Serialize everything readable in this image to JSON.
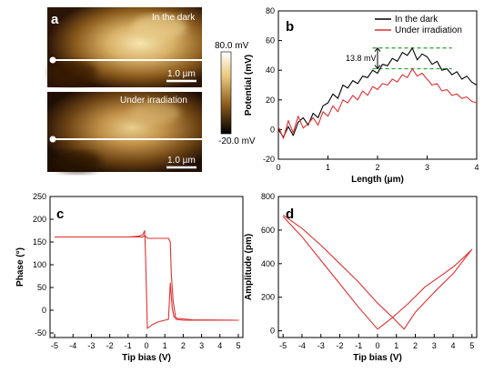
{
  "panel_a": {
    "letter": "a",
    "top_label": "In the dark",
    "bottom_label": "Under irradiation",
    "scalebar_top": "1.0 µm",
    "scalebar_bottom": "1.0 µm",
    "colorbar_max": "80.0 mV",
    "colorbar_min": "-20.0 mV",
    "colors": {
      "dark": "#1a0a00",
      "mid": "#8a5a1c",
      "bright": "#f2e0a6"
    }
  },
  "chart_data": [
    {
      "id": "b",
      "type": "line",
      "letter": "b",
      "xlabel": "Length (μm)",
      "ylabel": "Potential (mV)",
      "xlim": [
        0,
        4
      ],
      "ylim": [
        -20,
        80
      ],
      "xticks": [
        0,
        1,
        2,
        3,
        4
      ],
      "yticks": [
        -20,
        0,
        20,
        40,
        60,
        80
      ],
      "legend_position": "top-right",
      "annotation": "13.8 mV",
      "series": [
        {
          "name": "In the dark",
          "color": "#000000",
          "x": [
            0.0,
            0.1,
            0.2,
            0.3,
            0.4,
            0.5,
            0.6,
            0.7,
            0.8,
            0.9,
            1.0,
            1.1,
            1.2,
            1.3,
            1.4,
            1.5,
            1.6,
            1.7,
            1.8,
            1.9,
            2.0,
            2.1,
            2.2,
            2.3,
            2.4,
            2.5,
            2.6,
            2.7,
            2.8,
            2.9,
            3.0,
            3.1,
            3.2,
            3.3,
            3.4,
            3.5,
            3.6,
            3.7,
            3.8,
            3.9,
            4.0
          ],
          "y": [
            0,
            -5,
            2,
            -4,
            5,
            8,
            3,
            11,
            8,
            16,
            18,
            24,
            21,
            30,
            28,
            33,
            31,
            36,
            35,
            40,
            38,
            44,
            43,
            48,
            46,
            52,
            50,
            55,
            47,
            51,
            49,
            44,
            46,
            40,
            41,
            37,
            39,
            34,
            36,
            32,
            30
          ]
        },
        {
          "name": "Under irradiation",
          "color": "#e03030",
          "x": [
            0.0,
            0.1,
            0.2,
            0.3,
            0.4,
            0.5,
            0.6,
            0.7,
            0.8,
            0.9,
            1.0,
            1.1,
            1.2,
            1.3,
            1.4,
            1.5,
            1.6,
            1.7,
            1.8,
            1.9,
            2.0,
            2.1,
            2.2,
            2.3,
            2.4,
            2.5,
            2.6,
            2.7,
            2.8,
            2.9,
            3.0,
            3.1,
            3.2,
            3.3,
            3.4,
            3.5,
            3.6,
            3.7,
            3.8,
            3.9,
            4.0
          ],
          "y": [
            2,
            -6,
            6,
            -2,
            9,
            1,
            4,
            8,
            3,
            12,
            9,
            16,
            12,
            20,
            18,
            23,
            20,
            26,
            23,
            29,
            27,
            31,
            30,
            34,
            32,
            37,
            35,
            41,
            36,
            38,
            34,
            30,
            31,
            26,
            27,
            23,
            24,
            21,
            22,
            19,
            18
          ]
        }
      ]
    },
    {
      "id": "c",
      "type": "line",
      "letter": "c",
      "xlabel": "Tip bias (V)",
      "ylabel": "Phase (°)",
      "xlim": [
        -5.25,
        5.25
      ],
      "ylim": [
        -60,
        250
      ],
      "xticks": [
        -5,
        -4,
        -3,
        -2,
        -1,
        0,
        1,
        2,
        3,
        4,
        5
      ],
      "yticks": [
        -50,
        0,
        50,
        100,
        150,
        200,
        250
      ],
      "series": [
        {
          "name": "",
          "color": "#e03030",
          "x": [
            -5,
            -1,
            -0.4,
            -0.2,
            -0.1,
            -0.05,
            0.05,
            0.3,
            0.6,
            1.0,
            1.2,
            1.3,
            1.4,
            1.5,
            1.7,
            2.5,
            5,
            2,
            1.6,
            1.45,
            1.35,
            1.3,
            1.2,
            0.5,
            0.1,
            0.0,
            -0.1,
            -0.2,
            -0.3,
            -1,
            -5
          ],
          "y": [
            161,
            161,
            163,
            166,
            175,
            120,
            -40,
            -32,
            -26,
            -22,
            -20,
            60,
            5,
            -15,
            -18,
            -21,
            -22,
            -22,
            -20,
            20,
            80,
            150,
            158,
            158,
            158,
            160,
            165,
            161,
            161,
            161,
            161
          ]
        }
      ]
    },
    {
      "id": "d",
      "type": "line",
      "letter": "d",
      "xlabel": "Tip bias (V)",
      "ylabel": "Amplitude (pm)",
      "xlim": [
        -5.25,
        5.25
      ],
      "ylim": [
        -40,
        800
      ],
      "xticks": [
        -5,
        -4,
        -3,
        -2,
        -1,
        0,
        1,
        2,
        3,
        4,
        5
      ],
      "yticks": [
        0,
        200,
        400,
        600,
        800
      ],
      "series": [
        {
          "name": "",
          "color": "#e03030",
          "x": [
            -5,
            -4,
            -3,
            -2,
            -1,
            0,
            0.8,
            1.6,
            2.5,
            3.5,
            4,
            4.5,
            5,
            4,
            3,
            2,
            1.4,
            0.8,
            0,
            -1,
            -2,
            -3,
            -4,
            -5
          ],
          "y": [
            680,
            560,
            420,
            280,
            140,
            10,
            80,
            160,
            260,
            340,
            380,
            430,
            485,
            340,
            230,
            110,
            10,
            80,
            165,
            290,
            400,
            510,
            610,
            690
          ]
        }
      ]
    }
  ]
}
